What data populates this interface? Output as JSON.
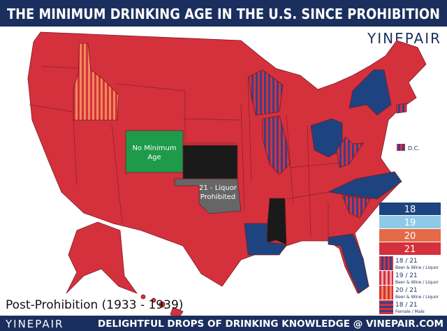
{
  "header": {
    "title": "THE MINIMUM DRINKING AGE IN THE U.S. SINCE PROHIBITION",
    "logo": "YINEPAIR"
  },
  "map": {
    "labels": [
      {
        "lines": [
          "No Minimum",
          "Age"
        ]
      },
      {
        "lines": [
          "21 - Liquor",
          "Prohibited"
        ]
      },
      {
        "lines": [
          "D.C."
        ]
      }
    ]
  },
  "legend": [
    {
      "label": "18"
    },
    {
      "label": "19"
    },
    {
      "label": "20"
    },
    {
      "label": "21"
    },
    {
      "label": "18 / 21",
      "sublabel": "Beer & Wine / Liquor"
    },
    {
      "label": "19 / 21",
      "sublabel": "Beer & Wine / Liquor"
    },
    {
      "label": "20 / 21",
      "sublabel": "Beer & Wine / Liquor"
    },
    {
      "label": "18 / 21",
      "sublabel": "Female / Male"
    }
  ],
  "period": "Post-Prohibition (1933 - 1939)",
  "footer": {
    "logo": "YINEPAIR",
    "tagline": "DELIGHTFUL DROPS OF DRINKING KNOWLEDGE @ VINEPAIR.COM"
  }
}
